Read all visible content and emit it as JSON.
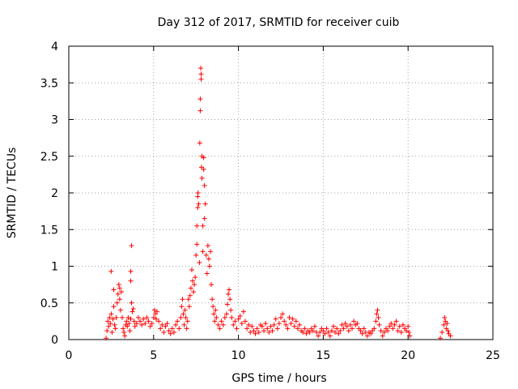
{
  "chart_data": {
    "type": "scatter",
    "title": "Day 312 of 2017, SRMTID for receiver cuib",
    "xlabel": "GPS time / hours",
    "ylabel": "SRMTID / TECUs",
    "xlim": [
      0,
      25
    ],
    "ylim": [
      0,
      4
    ],
    "x_ticks": [
      "0",
      "5",
      "10",
      "15",
      "20",
      "25"
    ],
    "y_ticks": [
      "0",
      "0.5",
      "1",
      "1.5",
      "2",
      "2.5",
      "3",
      "3.5",
      "4"
    ],
    "grid": true,
    "marker": "+",
    "color": "#ff0000",
    "series": [
      {
        "name": "SRMTID",
        "points": [
          [
            2.2,
            0.02
          ],
          [
            2.25,
            0.12
          ],
          [
            2.3,
            0.25
          ],
          [
            2.35,
            0.18
          ],
          [
            2.4,
            0.3
          ],
          [
            2.45,
            0.22
          ],
          [
            2.5,
            0.35
          ],
          [
            2.5,
            0.93
          ],
          [
            2.55,
            0.1
          ],
          [
            2.6,
            0.28
          ],
          [
            2.65,
            0.45
          ],
          [
            2.65,
            0.68
          ],
          [
            2.7,
            0.2
          ],
          [
            2.75,
            0.15
          ],
          [
            2.8,
            0.3
          ],
          [
            2.85,
            0.5
          ],
          [
            2.9,
            0.62
          ],
          [
            2.95,
            0.75
          ],
          [
            3.0,
            0.55
          ],
          [
            3.0,
            0.7
          ],
          [
            3.05,
            0.4
          ],
          [
            3.1,
            0.65
          ],
          [
            3.15,
            0.3
          ],
          [
            3.2,
            0.15
          ],
          [
            3.25,
            0.1
          ],
          [
            3.3,
            0.05
          ],
          [
            3.35,
            0.2
          ],
          [
            3.4,
            0.25
          ],
          [
            3.45,
            0.18
          ],
          [
            3.5,
            0.3
          ],
          [
            3.55,
            0.22
          ],
          [
            3.6,
            0.12
          ],
          [
            3.65,
            0.28
          ],
          [
            3.65,
            0.93
          ],
          [
            3.65,
            0.8
          ],
          [
            3.7,
            1.28
          ],
          [
            3.7,
            0.5
          ],
          [
            3.75,
            0.38
          ],
          [
            3.8,
            0.42
          ],
          [
            3.85,
            0.25
          ],
          [
            3.9,
            0.18
          ],
          [
            4.0,
            0.22
          ],
          [
            4.1,
            0.3
          ],
          [
            4.2,
            0.25
          ],
          [
            4.3,
            0.2
          ],
          [
            4.4,
            0.28
          ],
          [
            4.5,
            0.22
          ],
          [
            4.6,
            0.3
          ],
          [
            4.7,
            0.25
          ],
          [
            4.8,
            0.18
          ],
          [
            4.9,
            0.22
          ],
          [
            5.0,
            0.3
          ],
          [
            5.05,
            0.4
          ],
          [
            5.1,
            0.35
          ],
          [
            5.15,
            0.28
          ],
          [
            5.2,
            0.38
          ],
          [
            5.3,
            0.25
          ],
          [
            5.4,
            0.15
          ],
          [
            5.5,
            0.2
          ],
          [
            5.6,
            0.1
          ],
          [
            5.7,
            0.18
          ],
          [
            5.8,
            0.22
          ],
          [
            5.9,
            0.12
          ],
          [
            6.0,
            0.08
          ],
          [
            6.1,
            0.15
          ],
          [
            6.2,
            0.1
          ],
          [
            6.3,
            0.2
          ],
          [
            6.4,
            0.25
          ],
          [
            6.5,
            0.15
          ],
          [
            6.6,
            0.3
          ],
          [
            6.65,
            0.45
          ],
          [
            6.7,
            0.55
          ],
          [
            6.75,
            0.35
          ],
          [
            6.8,
            0.2
          ],
          [
            6.85,
            0.4
          ],
          [
            6.9,
            0.3
          ],
          [
            6.95,
            0.15
          ],
          [
            7.0,
            0.25
          ],
          [
            7.05,
            0.55
          ],
          [
            7.1,
            0.45
          ],
          [
            7.15,
            0.6
          ],
          [
            7.2,
            0.7
          ],
          [
            7.25,
            0.95
          ],
          [
            7.3,
            0.8
          ],
          [
            7.35,
            0.65
          ],
          [
            7.4,
            0.75
          ],
          [
            7.45,
            0.85
          ],
          [
            7.5,
            1.15
          ],
          [
            7.55,
            1.3
          ],
          [
            7.55,
            1.55
          ],
          [
            7.6,
            1.8
          ],
          [
            7.6,
            1.95
          ],
          [
            7.62,
            2.0
          ],
          [
            7.65,
            1.85
          ],
          [
            7.7,
            1.05
          ],
          [
            7.72,
            2.68
          ],
          [
            7.75,
            3.28
          ],
          [
            7.75,
            3.12
          ],
          [
            7.78,
            3.7
          ],
          [
            7.8,
            3.62
          ],
          [
            7.8,
            3.55
          ],
          [
            7.82,
            2.35
          ],
          [
            7.85,
            2.5
          ],
          [
            7.85,
            2.2
          ],
          [
            7.9,
            1.55
          ],
          [
            7.9,
            1.2
          ],
          [
            7.95,
            2.48
          ],
          [
            7.95,
            2.32
          ],
          [
            8.0,
            2.1
          ],
          [
            8.0,
            1.65
          ],
          [
            8.05,
            1.85
          ],
          [
            8.1,
            1.15
          ],
          [
            8.15,
            0.9
          ],
          [
            8.2,
            1.28
          ],
          [
            8.25,
            1.1
          ],
          [
            8.3,
            1.0
          ],
          [
            8.35,
            1.2
          ],
          [
            8.4,
            0.75
          ],
          [
            8.45,
            0.55
          ],
          [
            8.5,
            0.45
          ],
          [
            8.55,
            0.35
          ],
          [
            8.6,
            0.25
          ],
          [
            8.65,
            0.4
          ],
          [
            8.7,
            0.3
          ],
          [
            8.8,
            0.2
          ],
          [
            8.9,
            0.15
          ],
          [
            9.0,
            0.25
          ],
          [
            9.1,
            0.2
          ],
          [
            9.2,
            0.3
          ],
          [
            9.3,
            0.35
          ],
          [
            9.35,
            0.48
          ],
          [
            9.4,
            0.62
          ],
          [
            9.45,
            0.68
          ],
          [
            9.5,
            0.55
          ],
          [
            9.55,
            0.4
          ],
          [
            9.6,
            0.3
          ],
          [
            9.7,
            0.2
          ],
          [
            9.8,
            0.25
          ],
          [
            9.9,
            0.15
          ],
          [
            10.0,
            0.28
          ],
          [
            10.1,
            0.32
          ],
          [
            10.2,
            0.22
          ],
          [
            10.3,
            0.38
          ],
          [
            10.4,
            0.25
          ],
          [
            10.5,
            0.15
          ],
          [
            10.6,
            0.2
          ],
          [
            10.7,
            0.1
          ],
          [
            10.8,
            0.18
          ],
          [
            10.9,
            0.12
          ],
          [
            11.0,
            0.08
          ],
          [
            11.1,
            0.15
          ],
          [
            11.2,
            0.1
          ],
          [
            11.3,
            0.2
          ],
          [
            11.4,
            0.18
          ],
          [
            11.5,
            0.12
          ],
          [
            11.6,
            0.22
          ],
          [
            11.7,
            0.15
          ],
          [
            11.8,
            0.1
          ],
          [
            11.9,
            0.18
          ],
          [
            12.0,
            0.12
          ],
          [
            12.1,
            0.2
          ],
          [
            12.2,
            0.28
          ],
          [
            12.3,
            0.15
          ],
          [
            12.4,
            0.22
          ],
          [
            12.5,
            0.3
          ],
          [
            12.6,
            0.35
          ],
          [
            12.7,
            0.25
          ],
          [
            12.8,
            0.2
          ],
          [
            12.9,
            0.15
          ],
          [
            13.0,
            0.3
          ],
          [
            13.1,
            0.22
          ],
          [
            13.2,
            0.28
          ],
          [
            13.3,
            0.18
          ],
          [
            13.4,
            0.25
          ],
          [
            13.5,
            0.15
          ],
          [
            13.6,
            0.2
          ],
          [
            13.7,
            0.12
          ],
          [
            13.8,
            0.1
          ],
          [
            13.9,
            0.15
          ],
          [
            14.0,
            0.08
          ],
          [
            14.1,
            0.12
          ],
          [
            14.2,
            0.1
          ],
          [
            14.3,
            0.15
          ],
          [
            14.4,
            0.12
          ],
          [
            14.5,
            0.18
          ],
          [
            14.6,
            0.1
          ],
          [
            14.7,
            0.05
          ],
          [
            14.8,
            0.1
          ],
          [
            14.9,
            0.15
          ],
          [
            15.0,
            0.12
          ],
          [
            15.1,
            0.08
          ],
          [
            15.2,
            0.15
          ],
          [
            15.3,
            0.1
          ],
          [
            15.4,
            0.05
          ],
          [
            15.5,
            0.12
          ],
          [
            15.6,
            0.18
          ],
          [
            15.7,
            0.1
          ],
          [
            15.8,
            0.15
          ],
          [
            15.9,
            0.08
          ],
          [
            16.0,
            0.12
          ],
          [
            16.1,
            0.2
          ],
          [
            16.2,
            0.15
          ],
          [
            16.3,
            0.22
          ],
          [
            16.4,
            0.18
          ],
          [
            16.5,
            0.12
          ],
          [
            16.6,
            0.2
          ],
          [
            16.7,
            0.15
          ],
          [
            16.8,
            0.25
          ],
          [
            16.9,
            0.2
          ],
          [
            17.0,
            0.22
          ],
          [
            17.1,
            0.15
          ],
          [
            17.2,
            0.12
          ],
          [
            17.3,
            0.08
          ],
          [
            17.4,
            0.15
          ],
          [
            17.5,
            0.1
          ],
          [
            17.6,
            0.05
          ],
          [
            17.7,
            0.1
          ],
          [
            17.8,
            0.08
          ],
          [
            17.9,
            0.12
          ],
          [
            18.0,
            0.15
          ],
          [
            18.1,
            0.25
          ],
          [
            18.15,
            0.35
          ],
          [
            18.2,
            0.4
          ],
          [
            18.25,
            0.3
          ],
          [
            18.3,
            0.2
          ],
          [
            18.4,
            0.12
          ],
          [
            18.5,
            0.05
          ],
          [
            18.6,
            0.1
          ],
          [
            18.7,
            0.15
          ],
          [
            18.8,
            0.12
          ],
          [
            18.9,
            0.18
          ],
          [
            19.0,
            0.22
          ],
          [
            19.1,
            0.15
          ],
          [
            19.2,
            0.2
          ],
          [
            19.3,
            0.25
          ],
          [
            19.4,
            0.12
          ],
          [
            19.5,
            0.18
          ],
          [
            19.6,
            0.1
          ],
          [
            19.7,
            0.2
          ],
          [
            19.8,
            0.15
          ],
          [
            19.9,
            0.12
          ],
          [
            20.0,
            0.18
          ],
          [
            20.05,
            0.1
          ],
          [
            20.1,
            0.05
          ],
          [
            21.9,
            0.02
          ],
          [
            22.0,
            0.1
          ],
          [
            22.1,
            0.2
          ],
          [
            22.15,
            0.3
          ],
          [
            22.2,
            0.25
          ],
          [
            22.25,
            0.15
          ],
          [
            22.3,
            0.22
          ],
          [
            22.35,
            0.12
          ],
          [
            22.4,
            0.08
          ],
          [
            22.5,
            0.05
          ]
        ]
      }
    ]
  }
}
